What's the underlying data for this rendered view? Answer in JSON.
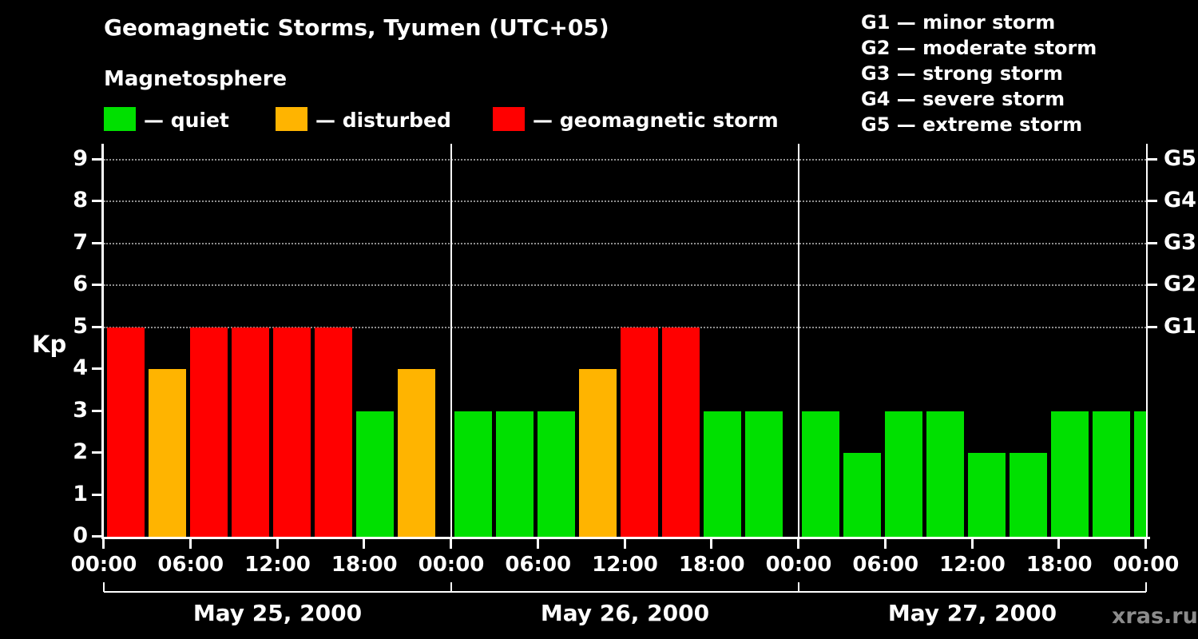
{
  "header": {
    "title": "Geomagnetic Storms, Tyumen (UTC+05)",
    "subtitle": "Magnetosphere"
  },
  "legend": {
    "items": [
      {
        "key": "quiet",
        "label": "— quiet",
        "color": "#00E000"
      },
      {
        "key": "disturbed",
        "label": "— disturbed",
        "color": "#FFB400"
      },
      {
        "key": "storm",
        "label": "— geomagnetic storm",
        "color": "#FF0000"
      }
    ]
  },
  "g_scale_legend": {
    "items": [
      "G1 — minor storm",
      "G2 — moderate storm",
      "G3 — strong storm",
      "G4 — severe storm",
      "G5 — extreme storm"
    ]
  },
  "watermark": "xras.ru",
  "chart_data": {
    "type": "bar",
    "title": "Geomagnetic Storms, Tyumen (UTC+05)",
    "subtitle": "Magnetosphere",
    "ylabel": "Kp",
    "ylim": [
      0,
      9
    ],
    "y_ticks": [
      0,
      1,
      2,
      3,
      4,
      5,
      6,
      7,
      8,
      9
    ],
    "right_axis_labels": [
      {
        "label": "G1",
        "kp": 5
      },
      {
        "label": "G2",
        "kp": 6
      },
      {
        "label": "G3",
        "kp": 7
      },
      {
        "label": "G4",
        "kp": 8
      },
      {
        "label": "G5",
        "kp": 9
      }
    ],
    "grid_dotted_levels": [
      5,
      6,
      7,
      8,
      9
    ],
    "x_tick_labels": [
      "00:00",
      "06:00",
      "12:00",
      "18:00",
      "00:00",
      "06:00",
      "12:00",
      "18:00",
      "00:00",
      "06:00",
      "12:00",
      "18:00",
      "00:00"
    ],
    "bar_interval_hours": 3,
    "color_rules": {
      "disturbed_min": 4,
      "storm_min": 5
    },
    "days": [
      {
        "date": "May 25, 2000",
        "kp": [
          5,
          4,
          5,
          5,
          5,
          5,
          3,
          4
        ]
      },
      {
        "date": "May 26, 2000",
        "kp": [
          3,
          3,
          3,
          4,
          5,
          5,
          3,
          3
        ]
      },
      {
        "date": "May 27, 2000",
        "kp": [
          3,
          2,
          3,
          3,
          2,
          2,
          3,
          3
        ]
      }
    ],
    "partial_next_bar_kp": 3,
    "legend_position": "top",
    "grid": "dotted horizontal lines at Kp 5-9 (G1-G5)"
  }
}
